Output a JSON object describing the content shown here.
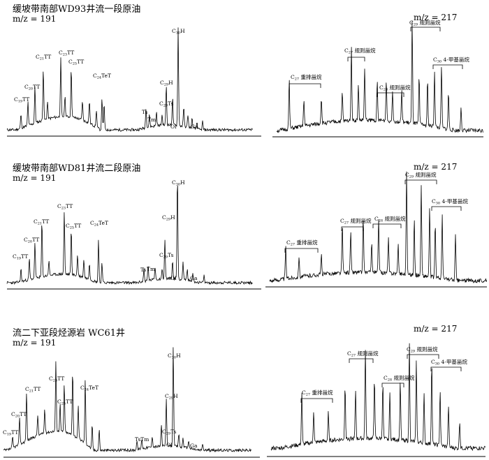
{
  "chart_data": [
    {
      "type": "line",
      "title": "缓坡带南部WD93井流一段原油",
      "subtitle": "m/z = 191",
      "peaks": [
        {
          "label": "C19TT",
          "base": "C",
          "sub": "19",
          "rest": "TT"
        },
        {
          "label": "C20TT",
          "base": "C",
          "sub": "20",
          "rest": "TT"
        },
        {
          "label": "C21TT",
          "base": "C",
          "sub": "21",
          "rest": "TT"
        },
        {
          "label": "C23TT",
          "base": "C",
          "sub": "23",
          "rest": "TT"
        },
        {
          "label": "C25TT",
          "base": "C",
          "sub": "25",
          "rest": "TT"
        },
        {
          "label": "C24TeT",
          "base": "C",
          "sub": "24",
          "rest": "TeT"
        },
        {
          "label": "Ts",
          "base": "Ts",
          "sub": "",
          "rest": ""
        },
        {
          "label": "Tm",
          "base": "Tm",
          "sub": "",
          "rest": ""
        },
        {
          "label": "C29H",
          "base": "C",
          "sub": "29",
          "rest": "H"
        },
        {
          "label": "C29Ts",
          "base": "C",
          "sub": "29",
          "rest": "Ts"
        },
        {
          "label": "C30H",
          "base": "C",
          "sub": "30",
          "rest": "H"
        },
        {
          "label": "Ol",
          "base": "Ol",
          "sub": "",
          "rest": ""
        },
        {
          "label": "Ga",
          "base": "Ga",
          "sub": "",
          "rest": ""
        }
      ]
    },
    {
      "type": "line",
      "title": "",
      "subtitle": "m/z = 217",
      "brackets": [
        {
          "label": "C27 重排甾烷",
          "base": "C",
          "sub": "27",
          "rest": " 重排甾烷"
        },
        {
          "label": "C27 规则甾烷",
          "base": "C",
          "sub": "27",
          "rest": " 规则甾烷"
        },
        {
          "label": "C28 规则甾烷",
          "base": "C",
          "sub": "28",
          "rest": " 规则甾烷"
        },
        {
          "label": "C29 规则甾烷",
          "base": "C",
          "sub": "29",
          "rest": " 规则甾烷"
        },
        {
          "label": "C30 4-甲基甾烷",
          "base": "C",
          "sub": "30",
          "rest": " 4-甲基甾烷"
        }
      ]
    },
    {
      "type": "line",
      "title": "缓坡带南部WD81井流二段原油",
      "subtitle": "m/z = 191",
      "peaks": [
        {
          "label": "C19TT",
          "base": "C",
          "sub": "19",
          "rest": "TT"
        },
        {
          "label": "C20TT",
          "base": "C",
          "sub": "20",
          "rest": "TT"
        },
        {
          "label": "C21TT",
          "base": "C",
          "sub": "21",
          "rest": "TT"
        },
        {
          "label": "C23TT",
          "base": "C",
          "sub": "23",
          "rest": "TT"
        },
        {
          "label": "C25TT",
          "base": "C",
          "sub": "25",
          "rest": "TT"
        },
        {
          "label": "C24TeT",
          "base": "C",
          "sub": "24",
          "rest": "TeT"
        },
        {
          "label": "Ts",
          "base": "Ts",
          "sub": "",
          "rest": ""
        },
        {
          "label": "Tm",
          "base": "Tm",
          "sub": "",
          "rest": ""
        },
        {
          "label": "C29H",
          "base": "C",
          "sub": "29",
          "rest": "H"
        },
        {
          "label": "C29Ts",
          "base": "C",
          "sub": "29",
          "rest": "Ts"
        },
        {
          "label": "C30H",
          "base": "C",
          "sub": "30",
          "rest": "H"
        },
        {
          "label": "Ol",
          "base": "Ol",
          "sub": "",
          "rest": ""
        },
        {
          "label": "Ga",
          "base": "Ga",
          "sub": "",
          "rest": ""
        }
      ]
    },
    {
      "type": "line",
      "title": "",
      "subtitle": "m/z = 217",
      "brackets": [
        {
          "label": "C27 重排甾烷",
          "base": "C",
          "sub": "27",
          "rest": " 重排甾烷"
        },
        {
          "label": "C27 规则甾烷",
          "base": "C",
          "sub": "27",
          "rest": " 规则甾烷"
        },
        {
          "label": "C28 规则甾烷",
          "base": "C",
          "sub": "28",
          "rest": " 规则甾烷"
        },
        {
          "label": "C29 规则甾烷",
          "base": "C",
          "sub": "29",
          "rest": " 规则甾烷"
        },
        {
          "label": "C30 4-甲基甾烷",
          "base": "C",
          "sub": "30",
          "rest": " 4-甲基甾烷"
        }
      ]
    },
    {
      "type": "line",
      "title": "流二下亚段烃源岩 WC61井",
      "subtitle": "m/z = 191",
      "peaks": [
        {
          "label": "C19TT",
          "base": "C",
          "sub": "19",
          "rest": "TT"
        },
        {
          "label": "C20TT",
          "base": "C",
          "sub": "20",
          "rest": "TT"
        },
        {
          "label": "C21TT",
          "base": "C",
          "sub": "21",
          "rest": "TT"
        },
        {
          "label": "C23TT",
          "base": "C",
          "sub": "23",
          "rest": "TT"
        },
        {
          "label": "C25TT",
          "base": "C",
          "sub": "25",
          "rest": "TT"
        },
        {
          "label": "C24TeT",
          "base": "C",
          "sub": "24",
          "rest": "TeT"
        },
        {
          "label": "TsTm",
          "base": "TsTm",
          "sub": "",
          "rest": ""
        },
        {
          "label": "C29H",
          "base": "C",
          "sub": "29",
          "rest": "H"
        },
        {
          "label": "C29Ts",
          "base": "C",
          "sub": "29",
          "rest": "Ts"
        },
        {
          "label": "C30H",
          "base": "C",
          "sub": "30",
          "rest": "H"
        },
        {
          "label": "Ol",
          "base": "Ol",
          "sub": "",
          "rest": ""
        },
        {
          "label": "Ga",
          "base": "Ga",
          "sub": "",
          "rest": ""
        }
      ]
    },
    {
      "type": "line",
      "title": "",
      "subtitle": "m/z = 217",
      "brackets": [
        {
          "label": "C27 重排甾烷",
          "base": "C",
          "sub": "27",
          "rest": " 重排甾烷"
        },
        {
          "label": "C27 规则甾烷",
          "base": "C",
          "sub": "27",
          "rest": " 规则甾烷"
        },
        {
          "label": "C28 规则甾烷",
          "base": "C",
          "sub": "28",
          "rest": " 规则甾烷"
        },
        {
          "label": "C29 规则甾烷",
          "base": "C",
          "sub": "29",
          "rest": " 规则甾烷"
        },
        {
          "label": "C30 4-甲基甾烷",
          "base": "C",
          "sub": "30",
          "rest": " 4-甲基甾烷"
        }
      ]
    }
  ]
}
